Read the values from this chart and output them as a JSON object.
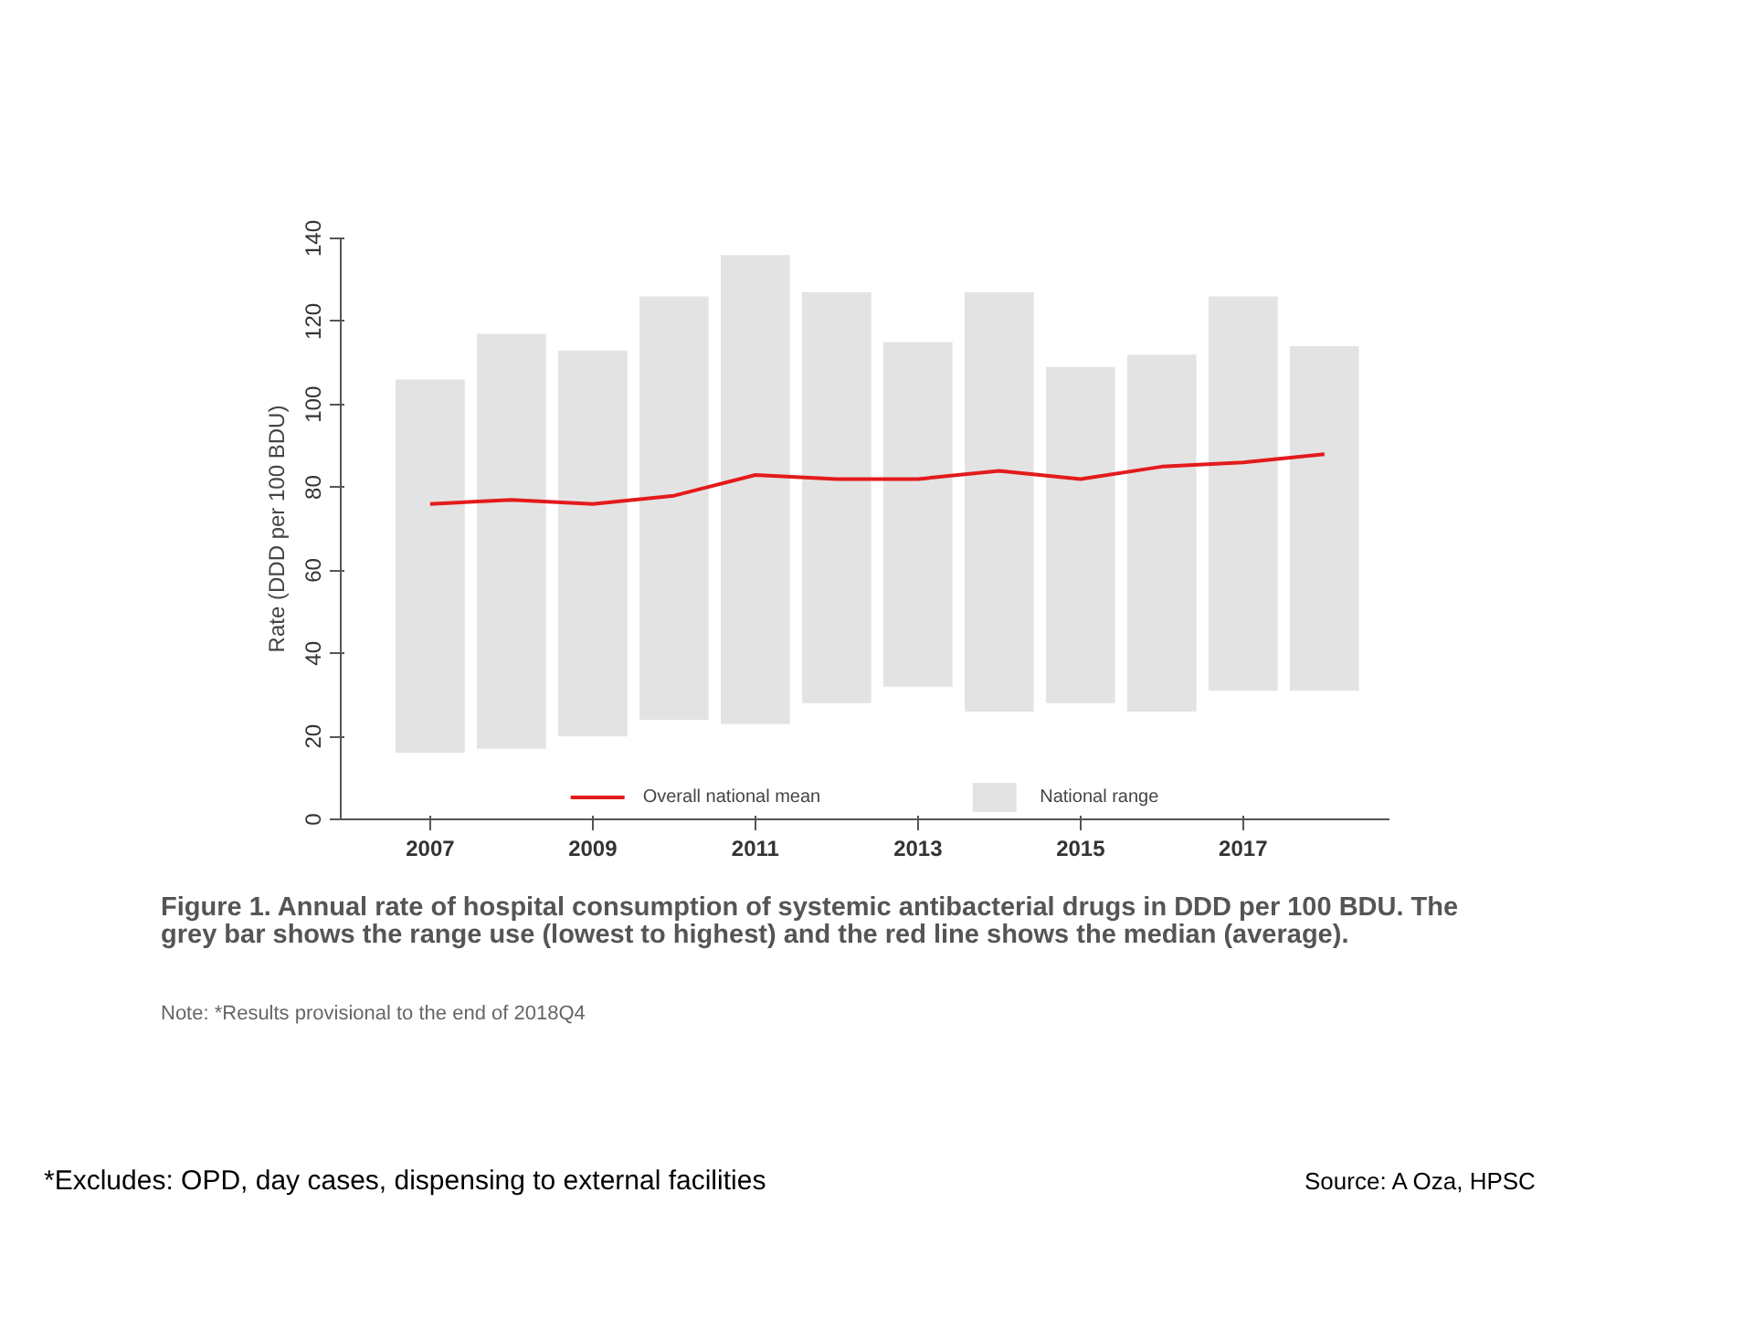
{
  "chart_data": {
    "type": "bar",
    "x": [
      2007,
      2008,
      2009,
      2010,
      2011,
      2012,
      2013,
      2014,
      2015,
      2016,
      2017,
      2018
    ],
    "series": [
      {
        "type": "line",
        "name": "Overall national mean",
        "color": "#e41a1c",
        "values": [
          76,
          77,
          76,
          78,
          83,
          82,
          82,
          84,
          82,
          85,
          86,
          88
        ]
      },
      {
        "name": "National range",
        "color": "#e3e3e3",
        "base": [
          16,
          17,
          20,
          24,
          23,
          28,
          32,
          26,
          28,
          26,
          31,
          31
        ],
        "values": [
          90,
          100,
          93,
          102,
          113,
          99,
          83,
          101,
          81,
          86,
          95,
          83
        ]
      }
    ],
    "ylabel": "Rate (DDD per 100 BDU)",
    "xlim": [
      2005.9,
      2018.8
    ],
    "xticks": [
      2007,
      2009,
      2011,
      2013,
      2015,
      2017
    ],
    "ylim": [
      0,
      140
    ],
    "yticks": [
      0,
      20,
      40,
      60,
      80,
      100,
      120,
      140
    ],
    "grid": false,
    "legend": "bottom",
    "annotations": [
      "Figure 1. Annual rate of hospital consumption of systemic antibacterial drugs in DDD per 100 BDU. The grey bar shows the range use (lowest to highest) and the red line shows the median (average).",
      "Note: *Results provisional to the end of 2018Q4",
      "*Excludes: OPD, day cases, dispensing to external facilities",
      "Source: A Oza, HPSC"
    ]
  }
}
